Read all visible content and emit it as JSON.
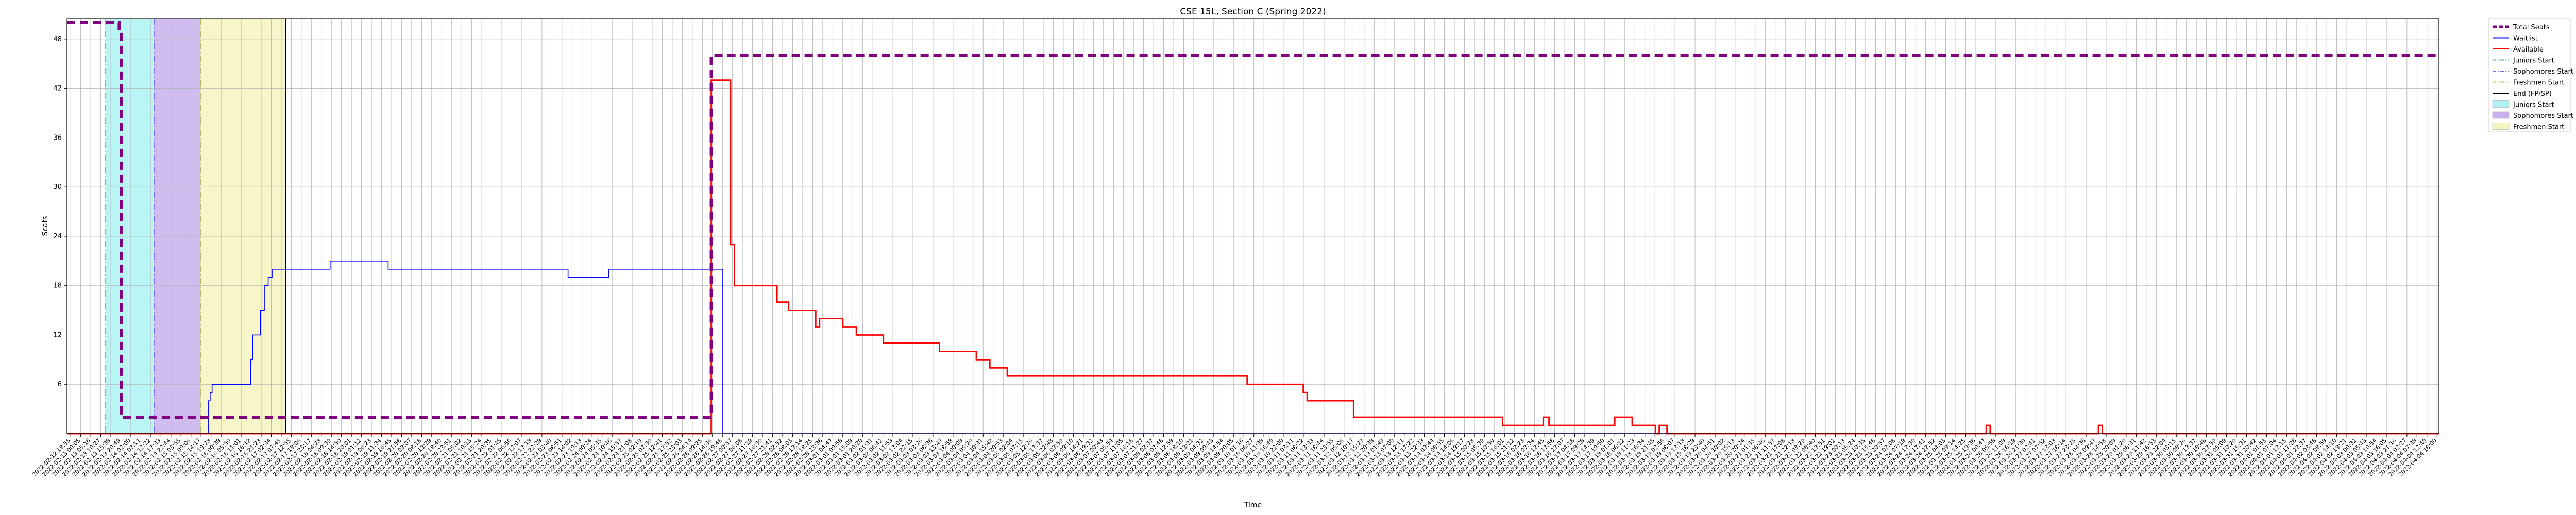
{
  "chart_data": {
    "type": "line",
    "title": "CSE 15L, Section C (Spring 2022)",
    "xlabel": "Time",
    "ylabel": "Seats",
    "ylim": [
      0,
      50.5
    ],
    "yticks": [
      6,
      12,
      18,
      24,
      30,
      36,
      42,
      48
    ],
    "grid": true,
    "legend_position": "outside-top-right",
    "xlim": [
      "2022-02-12 17:00",
      "2022-04-04 19:00"
    ],
    "x_tick_start": "2022-02-12 18:55",
    "x_tick_end": "2022-04-04 18:00",
    "x_tick_count": 237,
    "series": [
      {
        "name": "Total Seats",
        "color": "#800080",
        "style": "dashed",
        "points": [
          [
            "2022-02-12 17:00",
            50
          ],
          [
            "2022-02-13 20:00",
            50
          ],
          [
            "2022-02-13 20:00",
            49
          ],
          [
            "2022-02-13 21:00",
            49
          ],
          [
            "2022-02-13 21:00",
            2
          ],
          [
            "2022-02-26 14:00",
            2
          ],
          [
            "2022-02-26 14:00",
            46
          ],
          [
            "2022-04-04 19:00",
            46
          ]
        ]
      },
      {
        "name": "Waitlist",
        "color": "#0000ff",
        "style": "solid",
        "points": [
          [
            "2022-02-12 17:00",
            0
          ],
          [
            "2022-02-15 18:00",
            0
          ],
          [
            "2022-02-15 18:00",
            4
          ],
          [
            "2022-02-15 19:00",
            4
          ],
          [
            "2022-02-15 19:00",
            5
          ],
          [
            "2022-02-15 20:00",
            5
          ],
          [
            "2022-02-15 20:00",
            6
          ],
          [
            "2022-02-16 16:00",
            6
          ],
          [
            "2022-02-16 16:00",
            9
          ],
          [
            "2022-02-16 17:00",
            9
          ],
          [
            "2022-02-16 17:00",
            12
          ],
          [
            "2022-02-16 21:00",
            12
          ],
          [
            "2022-02-16 21:00",
            15
          ],
          [
            "2022-02-16 23:00",
            15
          ],
          [
            "2022-02-16 23:00",
            18
          ],
          [
            "2022-02-17 01:00",
            18
          ],
          [
            "2022-02-17 01:00",
            19
          ],
          [
            "2022-02-17 03:00",
            19
          ],
          [
            "2022-02-17 03:00",
            20
          ],
          [
            "2022-02-18 09:00",
            20
          ],
          [
            "2022-02-18 09:00",
            21
          ],
          [
            "2022-02-19 15:00",
            21
          ],
          [
            "2022-02-19 15:00",
            20
          ],
          [
            "2022-02-23 12:00",
            20
          ],
          [
            "2022-02-23 12:00",
            19
          ],
          [
            "2022-02-24 09:00",
            19
          ],
          [
            "2022-02-24 09:00",
            20
          ],
          [
            "2022-02-26 20:00",
            20
          ],
          [
            "2022-02-26 20:00",
            0
          ],
          [
            "2022-04-04 19:00",
            0
          ]
        ]
      },
      {
        "name": "Available",
        "color": "#ff0000",
        "style": "solid",
        "points": [
          [
            "2022-02-12 17:00",
            0
          ],
          [
            "2022-02-26 14:00",
            0
          ],
          [
            "2022-02-26 14:00",
            43
          ],
          [
            "2022-02-27 00:00",
            43
          ],
          [
            "2022-02-27 00:00",
            23
          ],
          [
            "2022-02-27 02:00",
            23
          ],
          [
            "2022-02-27 02:00",
            18
          ],
          [
            "2022-02-28 00:00",
            18
          ],
          [
            "2022-02-28 00:00",
            16
          ],
          [
            "2022-02-28 06:00",
            16
          ],
          [
            "2022-02-28 06:00",
            15
          ],
          [
            "2022-02-28 20:00",
            15
          ],
          [
            "2022-02-28 20:00",
            13
          ],
          [
            "2022-02-28 22:00",
            13
          ],
          [
            "2022-02-28 22:00",
            14
          ],
          [
            "2022-03-01 10:00",
            14
          ],
          [
            "2022-03-01 10:00",
            13
          ],
          [
            "2022-03-01 17:00",
            13
          ],
          [
            "2022-03-01 17:00",
            12
          ],
          [
            "2022-03-02 07:00",
            12
          ],
          [
            "2022-03-02 07:00",
            11
          ],
          [
            "2022-03-03 12:00",
            11
          ],
          [
            "2022-03-03 12:00",
            10
          ],
          [
            "2022-03-04 07:00",
            10
          ],
          [
            "2022-03-04 07:00",
            9
          ],
          [
            "2022-03-04 14:00",
            9
          ],
          [
            "2022-03-04 14:00",
            8
          ],
          [
            "2022-03-04 23:00",
            8
          ],
          [
            "2022-03-04 23:00",
            7
          ],
          [
            "2022-03-10 03:00",
            7
          ],
          [
            "2022-03-10 03:00",
            6
          ],
          [
            "2022-03-11 08:00",
            6
          ],
          [
            "2022-03-11 08:00",
            5
          ],
          [
            "2022-03-11 10:00",
            5
          ],
          [
            "2022-03-11 10:00",
            4
          ],
          [
            "2022-03-12 10:00",
            4
          ],
          [
            "2022-03-12 10:00",
            2
          ],
          [
            "2022-03-15 15:00",
            2
          ],
          [
            "2022-03-15 15:00",
            1
          ],
          [
            "2022-03-16 12:00",
            1
          ],
          [
            "2022-03-16 12:00",
            2
          ],
          [
            "2022-03-16 15:00",
            2
          ],
          [
            "2022-03-16 15:00",
            1
          ],
          [
            "2022-03-18 01:00",
            1
          ],
          [
            "2022-03-18 01:00",
            2
          ],
          [
            "2022-03-18 10:00",
            2
          ],
          [
            "2022-03-18 10:00",
            1
          ],
          [
            "2022-03-18 22:00",
            1
          ],
          [
            "2022-03-18 22:00",
            0
          ],
          [
            "2022-03-19 00:00",
            0
          ],
          [
            "2022-03-19 00:00",
            1
          ],
          [
            "2022-03-19 04:00",
            1
          ],
          [
            "2022-03-19 04:00",
            0
          ],
          [
            "2022-03-26 01:00",
            0
          ],
          [
            "2022-03-26 01:00",
            1
          ],
          [
            "2022-03-26 03:00",
            1
          ],
          [
            "2022-03-26 03:00",
            0
          ],
          [
            "2022-03-28 11:00",
            0
          ],
          [
            "2022-03-28 11:00",
            1
          ],
          [
            "2022-03-28 13:00",
            1
          ],
          [
            "2022-03-28 13:00",
            0
          ],
          [
            "2022-04-04 19:00",
            0
          ]
        ]
      }
    ],
    "vertical_lines": [
      {
        "name": "Juniors Start",
        "color": "#5f9ea0",
        "style": "dashdot",
        "x": "2022-02-13 13:00"
      },
      {
        "name": "Sophomores Start",
        "color": "#7b68ee",
        "style": "dashdot",
        "x": "2022-02-14 14:00"
      },
      {
        "name": "Freshmen Start",
        "color": "#b8b860",
        "style": "dashdot",
        "x": "2022-02-15 14:00"
      },
      {
        "name": "End (FP/SP)",
        "color": "#000000",
        "style": "solid",
        "x": "2022-02-17 10:00"
      }
    ],
    "spans": [
      {
        "name": "Juniors Start",
        "color": "#aef3f3",
        "x0": "2022-02-13 13:00",
        "x1": "2022-02-14 14:00"
      },
      {
        "name": "Sophomores Start",
        "color": "#c8b0ec",
        "x0": "2022-02-14 14:00",
        "x1": "2022-02-15 14:00"
      },
      {
        "name": "Freshmen Start",
        "color": "#f5f5c0",
        "x0": "2022-02-15 14:00",
        "x1": "2022-02-17 10:00"
      }
    ]
  }
}
